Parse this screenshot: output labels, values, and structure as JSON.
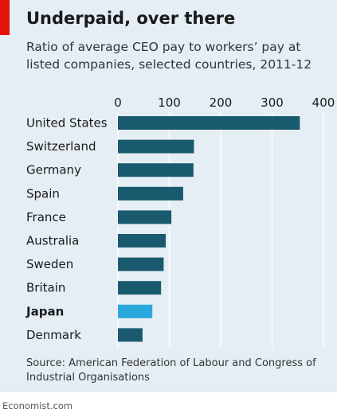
{
  "title": "Underpaid, over there",
  "subtitle": "Ratio of average CEO pay to workers’ pay at listed companies, selected countries, 2011-12",
  "source": "Source: American Federation of Labour and Congress of Industrial Organisations",
  "credit": "Economist.com",
  "colors": {
    "bar": "#1a5a6e",
    "highlight": "#2aa8dc",
    "grid": "#ffffff",
    "accent": "#e3120b",
    "background": "#e4eef4"
  },
  "chart_data": {
    "type": "bar",
    "orientation": "horizontal",
    "categories": [
      "United States",
      "Switzerland",
      "Germany",
      "Spain",
      "France",
      "Australia",
      "Sweden",
      "Britain",
      "Japan",
      "Denmark"
    ],
    "values": [
      354,
      148,
      147,
      127,
      104,
      93,
      89,
      84,
      67,
      48
    ],
    "highlight": [
      "Japan"
    ],
    "xlim": [
      0,
      400
    ],
    "xticks": [
      0,
      100,
      200,
      300,
      400
    ],
    "grid": true,
    "xlabel": "",
    "ylabel": ""
  }
}
